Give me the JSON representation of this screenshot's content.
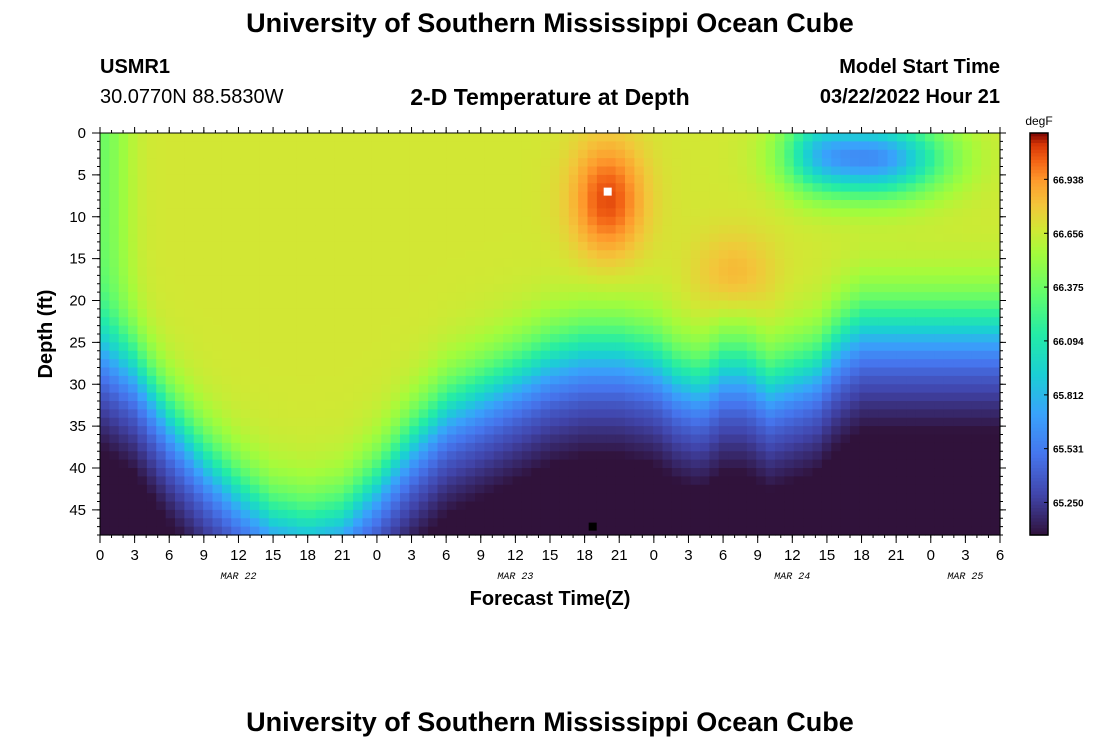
{
  "header": {
    "title": "University of Southern Mississippi Ocean Cube",
    "station_id": "USMR1",
    "station_coords": "30.0770N  88.5830W",
    "subtitle": "2-D Temperature at Depth",
    "model_label": "Model Start Time",
    "model_time": "03/22/2022 Hour 21"
  },
  "footer": {
    "title": "University of Southern Mississippi Ocean Cube"
  },
  "chart_data": {
    "type": "heatmap",
    "xlabel": "Forecast Time(Z)",
    "ylabel": "Depth (ft)",
    "x_tick_labels": [
      "0",
      "3",
      "6",
      "9",
      "12",
      "15",
      "18",
      "21",
      "0",
      "3",
      "6",
      "9",
      "12",
      "15",
      "18",
      "21",
      "0",
      "3",
      "6",
      "9",
      "12",
      "15",
      "18",
      "21",
      "0",
      "3",
      "6"
    ],
    "y_tick_labels": [
      "0",
      "5",
      "10",
      "15",
      "20",
      "25",
      "30",
      "35",
      "40",
      "45"
    ],
    "y_ticks": [
      0,
      5,
      10,
      15,
      20,
      25,
      30,
      35,
      40,
      45
    ],
    "ylim": [
      0,
      48
    ],
    "xlim_hours": [
      0,
      78
    ],
    "date_labels": [
      {
        "label": "MAR 22",
        "at_hour": 12
      },
      {
        "label": "MAR 23",
        "at_hour": 36
      },
      {
        "label": "MAR 24",
        "at_hour": 60
      },
      {
        "label": "MAR 25",
        "at_hour": 75
      }
    ],
    "colorbar": {
      "unit": "degF",
      "tick_labels": [
        "66.938",
        "66.656",
        "66.375",
        "66.094",
        "65.812",
        "65.531",
        "65.250"
      ],
      "ticks": [
        66.938,
        66.656,
        66.375,
        66.094,
        65.812,
        65.531,
        65.25
      ],
      "range": [
        65.08,
        67.18
      ]
    },
    "markers": [
      {
        "name": "max-marker",
        "hour": 44,
        "depth": 7,
        "color": "#ffffff"
      },
      {
        "name": "min-marker",
        "hour": 42.7,
        "depth": 47,
        "color": "#000000"
      }
    ],
    "thermocline_depth_profile": {
      "hours": [
        0,
        3,
        6,
        9,
        12,
        15,
        18,
        21,
        24,
        27,
        30,
        33,
        36,
        39,
        42,
        45,
        48,
        50,
        52,
        54,
        56,
        58,
        60,
        62,
        64,
        66,
        68,
        70,
        72,
        75,
        78
      ],
      "depth_ft": [
        24,
        27,
        33,
        38,
        42,
        45,
        46,
        45,
        41,
        36,
        32,
        30,
        28,
        26,
        25,
        25,
        26,
        28,
        29,
        27,
        27,
        29,
        28,
        27,
        24,
        22,
        22,
        22,
        22,
        22,
        22
      ]
    },
    "surface_cold_spot": {
      "hour": 67,
      "depth_ft": 3,
      "min_degF": 65.5
    },
    "warm_core": {
      "hour": 44,
      "depth_ft": 8,
      "max_degF": 67.1
    }
  }
}
